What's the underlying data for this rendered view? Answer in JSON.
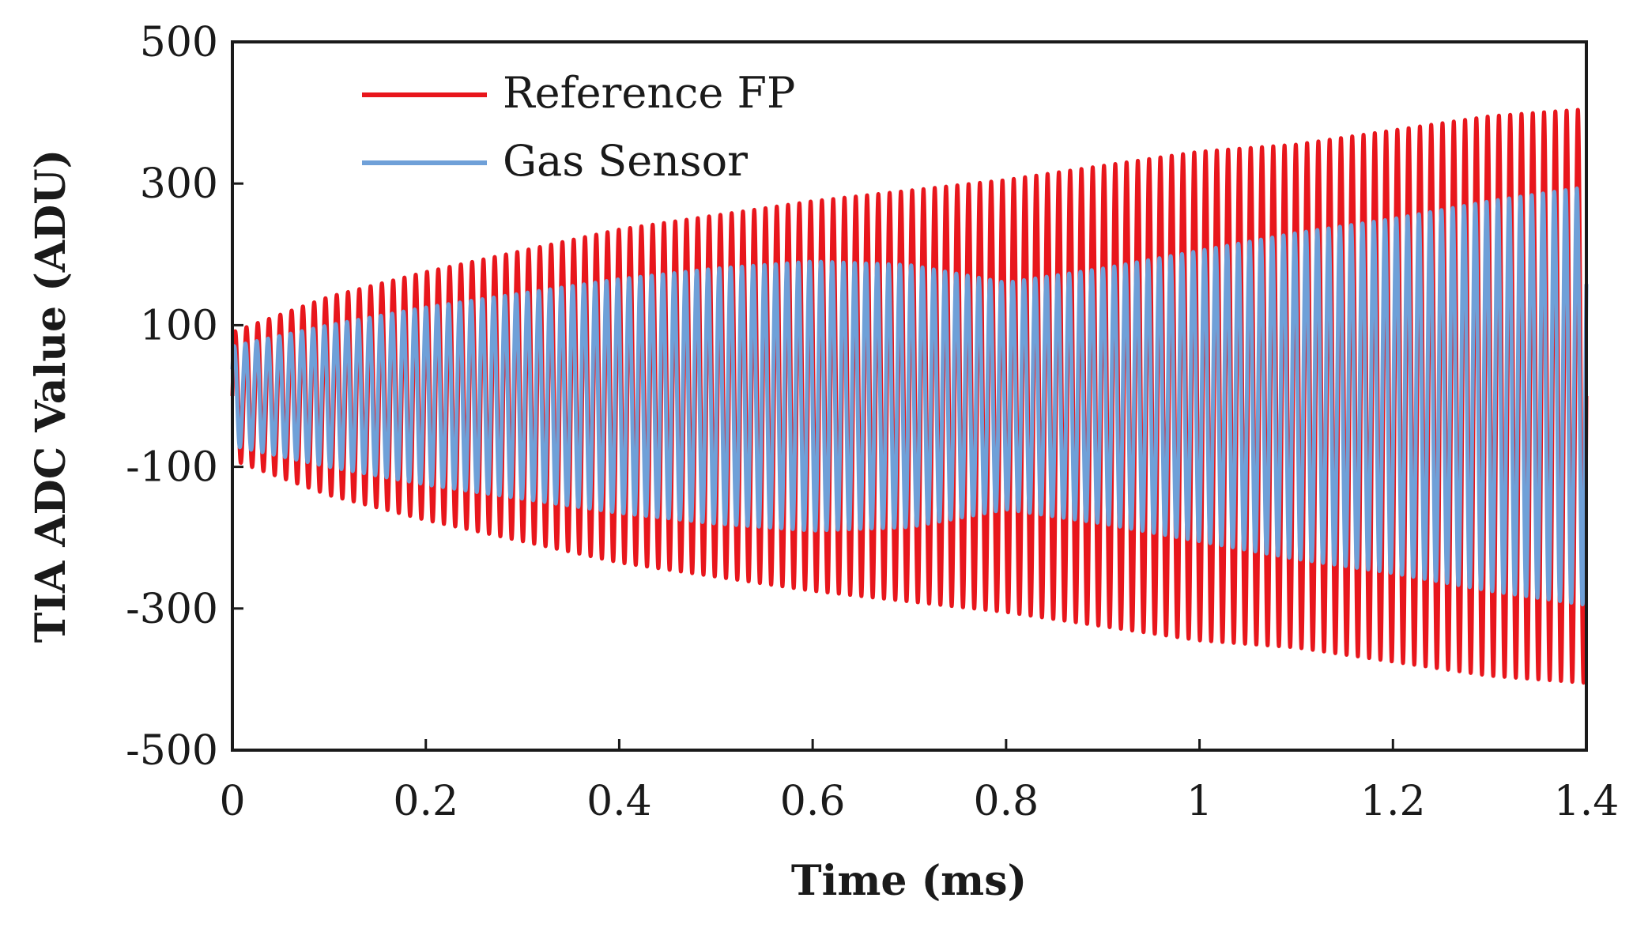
{
  "chart_data": {
    "type": "line",
    "title": "",
    "xlabel": "Time (ms)",
    "ylabel": "TIA ADC Value (ADU)",
    "xlim": [
      0,
      1.4
    ],
    "ylim": [
      -500,
      500
    ],
    "xticks": [
      "0",
      "0.2",
      "0.4",
      "0.6",
      "0.8",
      "1",
      "1.2",
      "1.4"
    ],
    "yticks": [
      "500",
      "300",
      "100",
      "-100",
      "-300",
      "-500"
    ],
    "grid": false,
    "legend_position": "top-left",
    "oscillation_cycles": 120,
    "series": [
      {
        "name": "Reference FP",
        "color": "#e8161c",
        "envelope_time_ms": [
          0,
          0.1,
          0.2,
          0.3,
          0.4,
          0.5,
          0.6,
          0.7,
          0.8,
          0.9,
          1.0,
          1.1,
          1.2,
          1.3,
          1.4
        ],
        "envelope_amplitude": [
          90,
          140,
          175,
          205,
          235,
          255,
          275,
          290,
          305,
          325,
          345,
          355,
          375,
          395,
          405
        ]
      },
      {
        "name": "Gas Sensor",
        "color": "#6fa0d8",
        "envelope_time_ms": [
          0,
          0.1,
          0.2,
          0.3,
          0.4,
          0.5,
          0.6,
          0.7,
          0.8,
          0.9,
          1.0,
          1.1,
          1.2,
          1.3,
          1.4
        ],
        "envelope_amplitude": [
          70,
          100,
          125,
          145,
          165,
          180,
          190,
          185,
          160,
          180,
          205,
          230,
          250,
          275,
          295
        ]
      }
    ]
  }
}
